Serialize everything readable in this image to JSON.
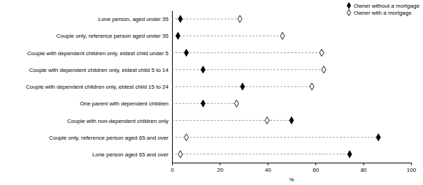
{
  "chart_data": {
    "type": "dot",
    "orientation": "horizontal",
    "categories": [
      "Lone person, aged under 35",
      "Couple only, reference person aged under 35",
      "Couple with dependent children only, eldest child under 5",
      "Couple with dependent children only, eldest child 5 to 14",
      "Couple with dependent children only, eldest child 15 to 24",
      "One parent with dependent children",
      "Couple with non-dependent children only",
      "Couple only, reference person aged 65 and over",
      "Lone person aged 65 and over"
    ],
    "series": [
      {
        "name": "Owner without a mortgage",
        "color": "#000000",
        "marker": "diamond",
        "values": [
          3.5,
          2.5,
          6,
          13,
          29.5,
          13,
          50,
          86.3,
          74.3
        ]
      },
      {
        "name": "Owner with a mortgage",
        "color": "#000000",
        "marker": "open-diamond",
        "values": [
          28.4,
          46.2,
          62.6,
          63.5,
          58.5,
          27,
          39.8,
          6,
          3.5
        ]
      }
    ],
    "x_label": "%",
    "xlim": [
      0,
      100
    ],
    "xticks": [
      0,
      20,
      40,
      60,
      80,
      100
    ],
    "line_style": "dashed",
    "legend": "top-right",
    "grid": false
  }
}
